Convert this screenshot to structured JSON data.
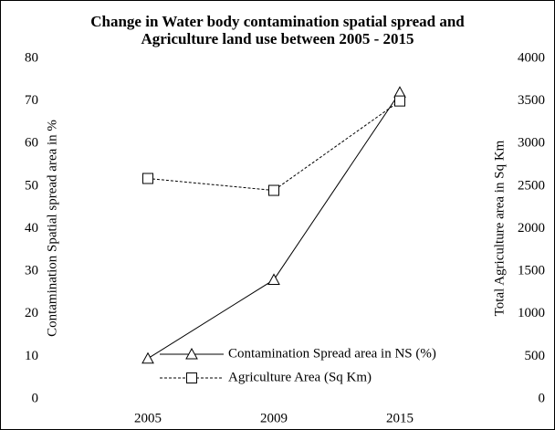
{
  "chart_data": {
    "type": "line",
    "title": "Change in Water body contamination spatial spread and Agriculture land use between 2005 - 2015",
    "y_label": "Contamination Spatial spread area in %",
    "y2_label": "Total Agriculture area in Sq Km",
    "categories": [
      "2005",
      "2009",
      "2015"
    ],
    "series": [
      {
        "name": "Contamination Spread area in NS (%)",
        "color": "#000000",
        "marker": "triangle",
        "linestyle": "solid",
        "values": [
          9.5,
          28,
          72
        ]
      },
      {
        "name": "Agriculture Area (Sq Km)",
        "color": "#000000",
        "marker": "square",
        "linestyle": "dashed",
        "axis": "y2",
        "values": [
          2590,
          2450,
          3500
        ]
      }
    ],
    "ylim": [
      0,
      80
    ],
    "yticks": [
      0,
      10,
      20,
      30,
      40,
      50,
      60,
      70,
      80
    ],
    "y2lim": [
      0,
      4000
    ],
    "y2ticks": [
      0,
      500,
      1000,
      1500,
      2000,
      2500,
      3000,
      3500,
      4000
    ],
    "grid": false,
    "legend": "lower center"
  }
}
